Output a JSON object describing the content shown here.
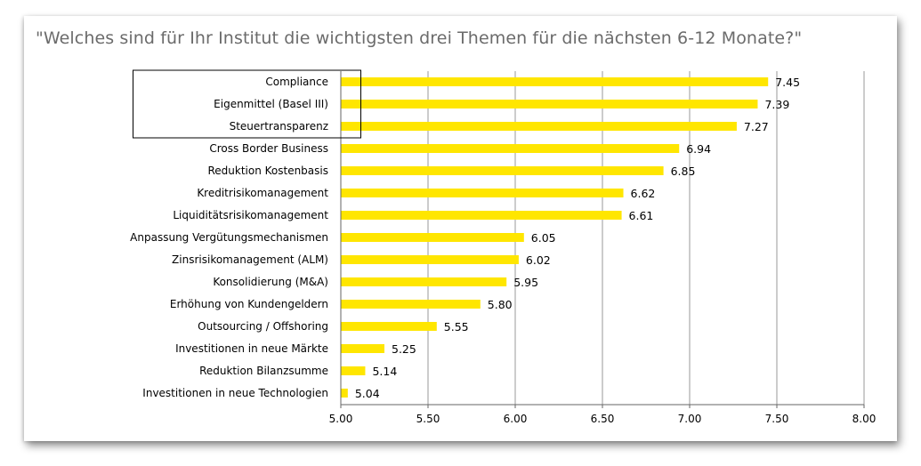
{
  "title": "\"Welches sind für Ihr Institut die wichtigsten drei Themen für die nächsten 6-12 Monate?\"",
  "colors": {
    "bar": "#FFE600",
    "grid": "#9a9a9a",
    "axis": "#666666"
  },
  "chart_data": {
    "type": "bar",
    "orientation": "horizontal",
    "title": "\"Welches sind für Ihr Institut die wichtigsten drei Themen für die nächsten 6-12 Monate?\"",
    "categories": [
      "Compliance",
      "Eigenmittel (Basel III)",
      "Steuertransparenz",
      "Cross Border Business",
      "Reduktion Kostenbasis",
      "Kreditrisikomanagement",
      "Liquiditätsrisikomanagement",
      "Anpassung  Vergütungsmechanismen",
      "Zinsrisikomanagement (ALM)",
      "Konsolidierung (M&A)",
      "Erhöhung von Kundengeldern",
      "Outsourcing / Offshoring",
      "Investitionen in neue Märkte",
      "Reduktion Bilanzsumme",
      "Investitionen in neue Technologien"
    ],
    "values": [
      7.45,
      7.39,
      7.27,
      6.94,
      6.85,
      6.62,
      6.61,
      6.05,
      6.02,
      5.95,
      5.8,
      5.55,
      5.25,
      5.14,
      5.04
    ],
    "value_labels": [
      "7.45",
      "7.39",
      "7.27",
      "6.94",
      "6.85",
      "6.62",
      "6.61",
      "6.05",
      "6.02",
      "5.95",
      "5.80",
      "5.55",
      "5.25",
      "5.14",
      "5.04"
    ],
    "xlim": [
      5.0,
      8.0
    ],
    "xticks": [
      "5.00",
      "5.50",
      "6.00",
      "6.50",
      "7.00",
      "7.50",
      "8.00"
    ],
    "grid": "vertical",
    "highlighted_categories": [
      "Compliance",
      "Eigenmittel (Basel III)",
      "Steuertransparenz"
    ],
    "xlabel": "",
    "ylabel": ""
  }
}
